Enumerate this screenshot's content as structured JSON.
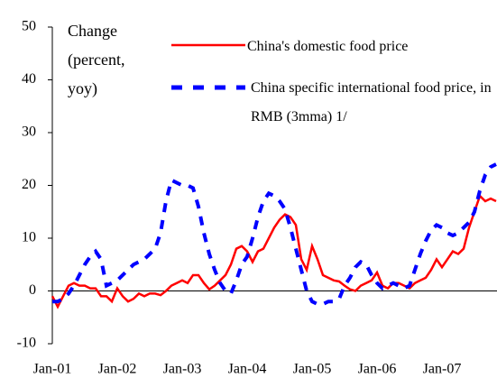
{
  "chart_data": {
    "type": "line",
    "y_label": "Change (percent, yoy)",
    "categories": [
      "Jan-01",
      null,
      null,
      null,
      null,
      null,
      null,
      null,
      null,
      null,
      null,
      null,
      "Jan-02",
      null,
      null,
      null,
      null,
      null,
      null,
      null,
      null,
      null,
      null,
      null,
      "Jan-03",
      null,
      null,
      null,
      null,
      null,
      null,
      null,
      null,
      null,
      null,
      null,
      "Jan-04",
      null,
      null,
      null,
      null,
      null,
      null,
      null,
      null,
      null,
      null,
      null,
      "Jan-05",
      null,
      null,
      null,
      null,
      null,
      null,
      null,
      null,
      null,
      null,
      null,
      "Jan-06",
      null,
      null,
      null,
      null,
      null,
      null,
      null,
      null,
      null,
      null,
      null,
      "Jan-07",
      null,
      null,
      null,
      null,
      null,
      null,
      null,
      null,
      null,
      null
    ],
    "series": [
      {
        "name": "China's domestic food price",
        "color": "#ff0000",
        "dash": false,
        "values": [
          -1,
          -3,
          -1,
          1,
          1.5,
          1,
          1,
          0.5,
          0.5,
          -1,
          -1,
          -2,
          0.5,
          -1,
          -2,
          -1.5,
          -0.5,
          -1,
          -0.5,
          -0.5,
          -0.8,
          0,
          1,
          1.5,
          2,
          1.5,
          3,
          3,
          1.5,
          0.3,
          1,
          2,
          3,
          5,
          8,
          8.5,
          7.5,
          5.5,
          7.5,
          8,
          10,
          12,
          13.5,
          14.5,
          14,
          12.5,
          6,
          4,
          8.5,
          6,
          3,
          2.5,
          2,
          1.8,
          1,
          0.3,
          0,
          1,
          1.5,
          2,
          3.5,
          1,
          0.5,
          1.5,
          1.5,
          1,
          0.5,
          1.5,
          2,
          2.5,
          4,
          6,
          4.5,
          6,
          7.5,
          7,
          8,
          12,
          15,
          18,
          17,
          17.5,
          17
        ]
      },
      {
        "name": "China specific international food price, in RMB (3mma) 1/",
        "color": "#0000ff",
        "dash": true,
        "values": [
          -2,
          -2,
          -1.5,
          -0.5,
          1,
          3,
          5,
          6.5,
          7.5,
          6,
          1,
          1.5,
          2,
          3,
          4,
          5,
          5.5,
          6,
          7,
          8,
          11,
          17,
          21,
          20.5,
          20,
          20,
          19.5,
          16,
          11,
          7,
          4,
          1.5,
          0,
          -0.5,
          2,
          5,
          6.5,
          10,
          14,
          17,
          18.5,
          18,
          17,
          15.5,
          12,
          8,
          4,
          0,
          -2,
          -2.5,
          -2.5,
          -2,
          -2,
          -1.5,
          1,
          2.5,
          4.5,
          5.5,
          5,
          3,
          1.5,
          0.5,
          1,
          1.5,
          1,
          0.5,
          1,
          4,
          7,
          9.5,
          11.5,
          12.5,
          12,
          11,
          10.5,
          11,
          12,
          13,
          15,
          19,
          22,
          23.5,
          24
        ]
      }
    ],
    "ylim": [
      -10,
      50
    ],
    "yticks": [
      -10,
      0,
      10,
      20,
      30,
      40,
      50
    ]
  }
}
